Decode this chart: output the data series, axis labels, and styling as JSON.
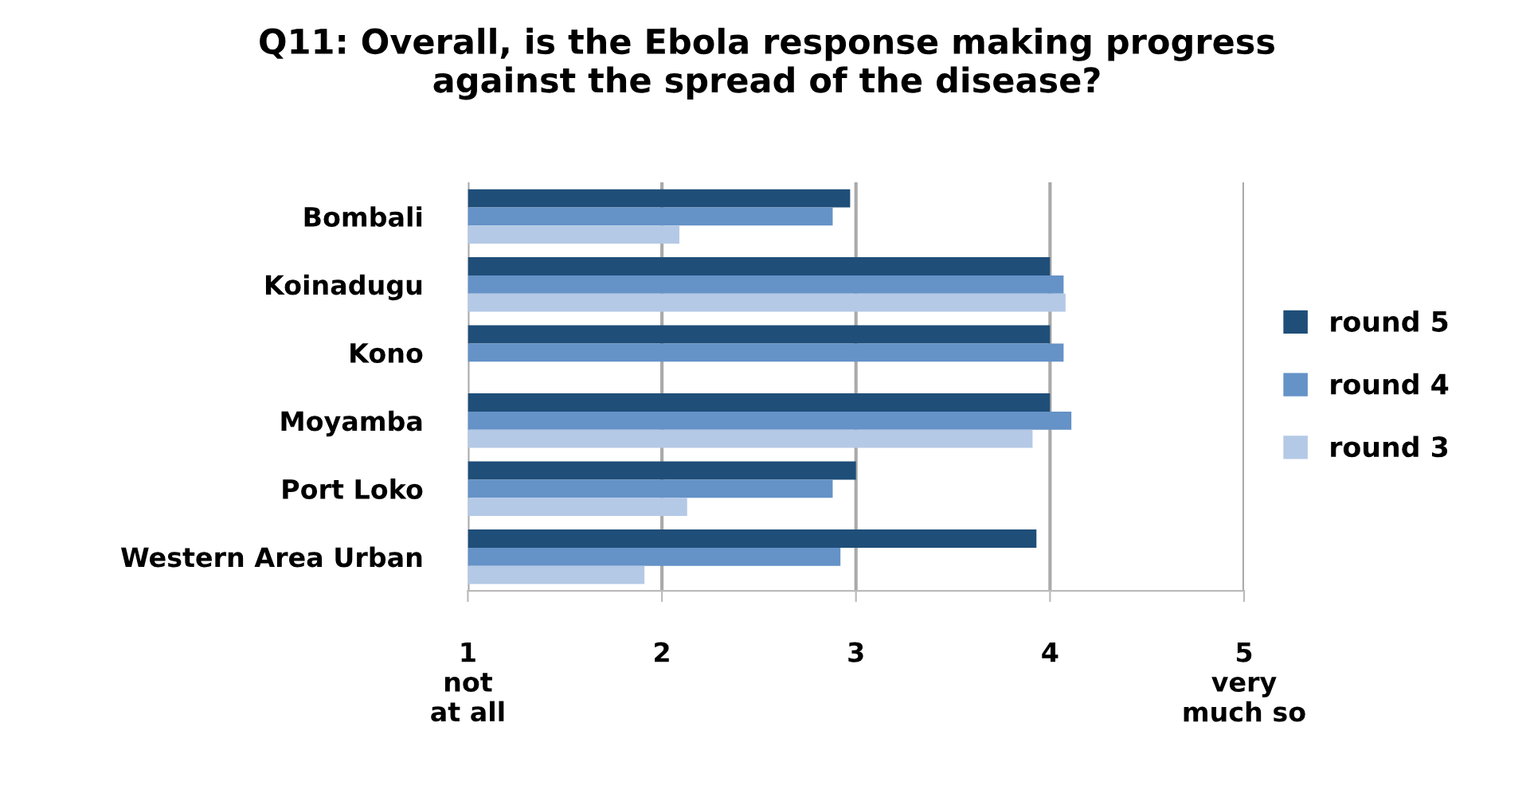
{
  "chart_data": {
    "type": "bar",
    "orientation": "horizontal",
    "title": "Q11: Overall, is the Ebola response making progress\nagainst the spread of the disease?",
    "categories": [
      "Bombali",
      "Koinadugu",
      "Kono",
      "Moyamba",
      "Port Loko",
      "Western Area Urban"
    ],
    "series": [
      {
        "name": "round 5",
        "color": "#1f4e79",
        "values": [
          2.97,
          4.0,
          4.0,
          4.0,
          3.0,
          3.93
        ]
      },
      {
        "name": "round 4",
        "color": "#6592c7",
        "values": [
          2.88,
          4.07,
          4.07,
          4.11,
          2.88,
          2.92
        ]
      },
      {
        "name": "round 3",
        "color": "#b4c9e6",
        "values": [
          2.09,
          4.08,
          null,
          3.91,
          2.13,
          1.91
        ]
      }
    ],
    "xlim": [
      1,
      5
    ],
    "xticks": [
      {
        "value": 1,
        "label": "1\nnot\nat all"
      },
      2,
      3,
      4,
      {
        "value": 5,
        "label": "5\nvery\nmuch so"
      }
    ],
    "grid": "x",
    "legend": "right"
  }
}
